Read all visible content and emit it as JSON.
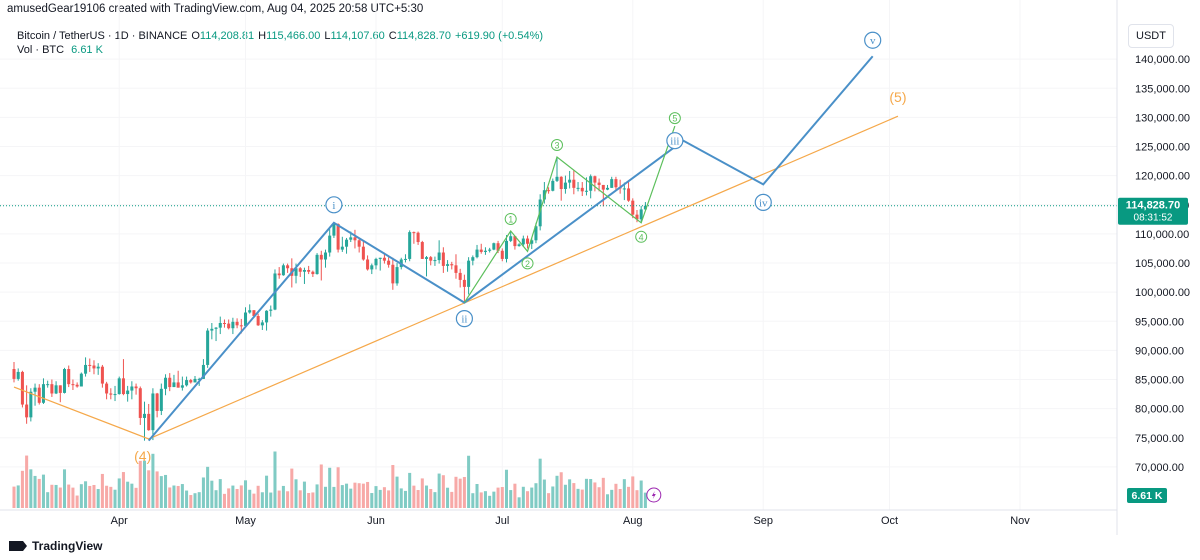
{
  "credit": "amusedGear19106 created with TradingView.com, Aug 04, 2025 20:58 UTC+5:30",
  "symbol_line": {
    "name": "Bitcoin / TetherUS · 1D · BINANCE",
    "o_label": "O",
    "o_value": "114,208.81",
    "h_label": "H",
    "h_value": "115,466.00",
    "l_label": "L",
    "l_value": "114,107.60",
    "c_label": "C",
    "c_value": "114,828.70",
    "change": "+619.90 (+0.54%)"
  },
  "vol_line": {
    "label": "Vol · BTC",
    "value": "6.61 K"
  },
  "currency": "USDT",
  "brand": "TradingView",
  "price_tag": {
    "price": "114,828.70",
    "countdown": "08:31:52"
  },
  "volume_tag": "6.61 K",
  "colors": {
    "up": "#26a69a",
    "down": "#ef5350",
    "vol_up": "#80cbc4",
    "vol_down": "#f7a9a7",
    "wave_main": "#4a90c8",
    "wave_sub": "#5cbf5c",
    "trendline": "#f5a84a",
    "price_line": "#089981"
  },
  "chart_data": {
    "type": "candlestick",
    "y_axis": {
      "min": 65000,
      "max": 145000,
      "ticks": [
        70000,
        75000,
        80000,
        85000,
        90000,
        95000,
        100000,
        105000,
        110000,
        115000,
        120000,
        125000,
        130000,
        135000,
        140000
      ],
      "tick_labels": [
        "70,000.00",
        "75,000.00",
        "80,000.00",
        "85,000.00",
        "90,000.00",
        "95,000.00",
        "100,000.00",
        "105,000.00",
        "110,000.00",
        "115,000.00",
        "120,000.00",
        "125,000.00",
        "130,000.00",
        "135,000.00",
        "140,000.00"
      ]
    },
    "x_axis": {
      "start": "2025-03-07",
      "end": "2025-11-20",
      "tick_labels": [
        "Apr",
        "May",
        "Jun",
        "Jul",
        "Aug",
        "Sep",
        "Oct",
        "Nov"
      ],
      "tick_dates": [
        "2025-04-01",
        "2025-05-01",
        "2025-06-01",
        "2025-07-01",
        "2025-08-01",
        "2025-09-01",
        "2025-10-01",
        "2025-11-01"
      ]
    },
    "candles": [
      [
        "2025-03-07",
        86800,
        88000,
        84500,
        85100
      ],
      [
        "2025-03-08",
        85100,
        86900,
        84800,
        86300
      ],
      [
        "2025-03-09",
        86300,
        86500,
        80200,
        80700
      ],
      [
        "2025-03-10",
        80700,
        84000,
        77400,
        78500
      ],
      [
        "2025-03-11",
        78500,
        83500,
        77800,
        82900
      ],
      [
        "2025-03-12",
        82900,
        84300,
        80500,
        83600
      ],
      [
        "2025-03-13",
        83600,
        84200,
        80700,
        81000
      ],
      [
        "2025-03-14",
        81000,
        85200,
        80800,
        84200
      ],
      [
        "2025-03-15",
        84200,
        84800,
        83600,
        84200
      ],
      [
        "2025-03-16",
        84200,
        85000,
        82000,
        82600
      ],
      [
        "2025-03-17",
        82600,
        84700,
        82500,
        84000
      ],
      [
        "2025-03-18",
        84000,
        84000,
        81100,
        82700
      ],
      [
        "2025-03-19",
        82700,
        87000,
        82600,
        86800
      ],
      [
        "2025-03-20",
        86800,
        87400,
        83700,
        84200
      ],
      [
        "2025-03-21",
        84200,
        85000,
        83200,
        84100
      ],
      [
        "2025-03-22",
        84100,
        84500,
        83600,
        83800
      ],
      [
        "2025-03-23",
        83800,
        86200,
        83800,
        86000
      ],
      [
        "2025-03-24",
        86000,
        88800,
        85500,
        87500
      ],
      [
        "2025-03-25",
        87500,
        88600,
        86300,
        87400
      ],
      [
        "2025-03-26",
        87400,
        88300,
        85900,
        86900
      ],
      [
        "2025-03-27",
        86900,
        87800,
        85800,
        87200
      ],
      [
        "2025-03-28",
        87200,
        87500,
        83600,
        84300
      ],
      [
        "2025-03-29",
        84300,
        84600,
        81600,
        82600
      ],
      [
        "2025-03-30",
        82600,
        83500,
        81600,
        82400
      ],
      [
        "2025-03-31",
        82400,
        83900,
        81300,
        82500
      ],
      [
        "2025-04-01",
        82500,
        85500,
        82400,
        85200
      ],
      [
        "2025-04-02",
        85200,
        88500,
        82300,
        82500
      ],
      [
        "2025-04-03",
        82500,
        83900,
        81200,
        83100
      ],
      [
        "2025-04-04",
        83100,
        84700,
        81600,
        83800
      ],
      [
        "2025-04-05",
        83800,
        84300,
        82400,
        83500
      ],
      [
        "2025-04-06",
        83500,
        83800,
        77200,
        78400
      ],
      [
        "2025-04-07",
        78400,
        81200,
        74500,
        79100
      ],
      [
        "2025-04-08",
        79100,
        80800,
        76200,
        76300
      ],
      [
        "2025-04-09",
        76300,
        83500,
        74600,
        82600
      ],
      [
        "2025-04-10",
        82600,
        82700,
        78500,
        79600
      ],
      [
        "2025-04-11",
        79600,
        84300,
        78900,
        83400
      ],
      [
        "2025-04-12",
        83400,
        85900,
        82300,
        85300
      ],
      [
        "2025-04-13",
        85300,
        86100,
        83000,
        83700
      ],
      [
        "2025-04-14",
        83700,
        85800,
        83700,
        84500
      ],
      [
        "2025-04-15",
        84500,
        86500,
        83600,
        83600
      ],
      [
        "2025-04-16",
        83600,
        85500,
        83100,
        84000
      ],
      [
        "2025-04-17",
        84000,
        85500,
        83800,
        84900
      ],
      [
        "2025-04-18",
        84900,
        85100,
        84300,
        84500
      ],
      [
        "2025-04-19",
        84500,
        85600,
        84500,
        85100
      ],
      [
        "2025-04-20",
        85100,
        85300,
        83900,
        85100
      ],
      [
        "2025-04-21",
        85100,
        88500,
        85100,
        87500
      ],
      [
        "2025-04-22",
        87500,
        93800,
        87000,
        93400
      ],
      [
        "2025-04-23",
        93400,
        94700,
        91900,
        93700
      ],
      [
        "2025-04-24",
        93700,
        94000,
        91600,
        93900
      ],
      [
        "2025-04-25",
        93900,
        95800,
        92800,
        94700
      ],
      [
        "2025-04-26",
        94700,
        95300,
        93900,
        94600
      ],
      [
        "2025-04-27",
        94600,
        95300,
        93600,
        93800
      ],
      [
        "2025-04-28",
        93800,
        95600,
        92800,
        94900
      ],
      [
        "2025-04-29",
        94900,
        95500,
        93800,
        94300
      ],
      [
        "2025-04-30",
        94300,
        95400,
        92900,
        94200
      ],
      [
        "2025-05-01",
        94200,
        97400,
        94100,
        96500
      ],
      [
        "2025-05-02",
        96500,
        97900,
        96300,
        96900
      ],
      [
        "2025-05-03",
        96900,
        96900,
        95700,
        95900
      ],
      [
        "2025-05-04",
        95900,
        96300,
        94200,
        94300
      ],
      [
        "2025-05-05",
        94300,
        95200,
        93500,
        94800
      ],
      [
        "2025-05-06",
        94800,
        96900,
        93400,
        96800
      ],
      [
        "2025-05-07",
        96800,
        97700,
        95800,
        97000
      ],
      [
        "2025-05-08",
        97000,
        103900,
        96900,
        103200
      ],
      [
        "2025-05-09",
        103200,
        104300,
        102300,
        102900
      ],
      [
        "2025-05-10",
        102900,
        104900,
        102800,
        104600
      ],
      [
        "2025-05-11",
        104600,
        104900,
        103300,
        104100
      ],
      [
        "2025-05-12",
        104100,
        105800,
        100800,
        102800
      ],
      [
        "2025-05-13",
        102800,
        104900,
        101500,
        104100
      ],
      [
        "2025-05-14",
        104100,
        104300,
        102600,
        103500
      ],
      [
        "2025-05-15",
        103500,
        104200,
        101400,
        103800
      ],
      [
        "2025-05-16",
        103800,
        104500,
        103100,
        103500
      ],
      [
        "2025-05-17",
        103500,
        103700,
        102600,
        103100
      ],
      [
        "2025-05-18",
        103100,
        106700,
        103000,
        106400
      ],
      [
        "2025-05-19",
        106400,
        107100,
        102000,
        105600
      ],
      [
        "2025-05-20",
        105600,
        107300,
        104200,
        106800
      ],
      [
        "2025-05-21",
        106800,
        110800,
        106100,
        109700
      ],
      [
        "2025-05-22",
        109700,
        111900,
        109300,
        111700
      ],
      [
        "2025-05-23",
        111700,
        111800,
        106800,
        107300
      ],
      [
        "2025-05-24",
        107300,
        109500,
        106900,
        107800
      ],
      [
        "2025-05-25",
        107800,
        109300,
        106600,
        109000
      ],
      [
        "2025-05-26",
        109000,
        110400,
        108600,
        109400
      ],
      [
        "2025-05-27",
        109400,
        110700,
        107500,
        108900
      ],
      [
        "2025-05-28",
        108900,
        109300,
        106800,
        107800
      ],
      [
        "2025-05-29",
        107800,
        108900,
        105400,
        105600
      ],
      [
        "2025-05-30",
        105600,
        106300,
        103700,
        103900
      ],
      [
        "2025-05-31",
        103900,
        104900,
        103100,
        104600
      ],
      [
        "2025-06-01",
        104600,
        105900,
        103900,
        105700
      ],
      [
        "2025-06-02",
        105700,
        105900,
        103700,
        105900
      ],
      [
        "2025-06-03",
        105900,
        106800,
        104900,
        105400
      ],
      [
        "2025-06-04",
        105400,
        106000,
        104200,
        104700
      ],
      [
        "2025-06-05",
        104700,
        105900,
        100400,
        101500
      ],
      [
        "2025-06-06",
        101500,
        105000,
        101100,
        104300
      ],
      [
        "2025-06-07",
        104300,
        105900,
        103900,
        105600
      ],
      [
        "2025-06-08",
        105600,
        106500,
        105100,
        105700
      ],
      [
        "2025-06-09",
        105700,
        110600,
        105300,
        110300
      ],
      [
        "2025-06-10",
        110300,
        110400,
        108300,
        110200
      ],
      [
        "2025-06-11",
        110200,
        110400,
        108100,
        108600
      ],
      [
        "2025-06-12",
        108600,
        108800,
        105700,
        105700
      ],
      [
        "2025-06-13",
        105700,
        106200,
        102700,
        106000
      ],
      [
        "2025-06-14",
        106000,
        106200,
        104600,
        105400
      ],
      [
        "2025-06-15",
        105400,
        106100,
        104500,
        105500
      ],
      [
        "2025-06-16",
        105500,
        108900,
        104900,
        106800
      ],
      [
        "2025-06-17",
        106800,
        107700,
        103300,
        104500
      ],
      [
        "2025-06-18",
        104500,
        105500,
        103500,
        104800
      ],
      [
        "2025-06-19",
        104800,
        105200,
        103900,
        104600
      ],
      [
        "2025-06-20",
        104600,
        106500,
        102300,
        103300
      ],
      [
        "2025-06-21",
        103300,
        104000,
        100800,
        102100
      ],
      [
        "2025-06-22",
        102100,
        103000,
        98200,
        100900
      ],
      [
        "2025-06-23",
        100900,
        106000,
        99600,
        105400
      ],
      [
        "2025-06-24",
        105400,
        106300,
        104600,
        106000
      ],
      [
        "2025-06-25",
        106000,
        108100,
        105800,
        107300
      ],
      [
        "2025-06-26",
        107300,
        108300,
        106600,
        106900
      ],
      [
        "2025-06-27",
        106900,
        107700,
        106400,
        107100
      ],
      [
        "2025-06-28",
        107100,
        107600,
        106800,
        107300
      ],
      [
        "2025-06-29",
        107300,
        108500,
        107200,
        108400
      ],
      [
        "2025-06-30",
        108400,
        108800,
        106700,
        107100
      ],
      [
        "2025-07-01",
        107100,
        107500,
        105300,
        105700
      ],
      [
        "2025-07-02",
        105700,
        109800,
        105100,
        108800
      ],
      [
        "2025-07-03",
        108800,
        110500,
        108600,
        109600
      ],
      [
        "2025-07-04",
        109600,
        109700,
        107300,
        107900
      ],
      [
        "2025-07-05",
        107900,
        108400,
        107800,
        108200
      ],
      [
        "2025-07-06",
        108200,
        109700,
        107800,
        109200
      ],
      [
        "2025-07-07",
        109200,
        109700,
        107500,
        108300
      ],
      [
        "2025-07-08",
        108300,
        109200,
        107400,
        108900
      ],
      [
        "2025-07-09",
        108900,
        111900,
        108400,
        111300
      ],
      [
        "2025-07-10",
        111300,
        116800,
        110600,
        115900
      ],
      [
        "2025-07-11",
        115900,
        118900,
        115200,
        117500
      ],
      [
        "2025-07-12",
        117500,
        118000,
        116900,
        117400
      ],
      [
        "2025-07-13",
        117400,
        119500,
        117300,
        119100
      ],
      [
        "2025-07-14",
        119100,
        123200,
        118900,
        119800
      ],
      [
        "2025-07-15",
        119800,
        119900,
        115700,
        117700
      ],
      [
        "2025-07-16",
        117700,
        120000,
        116900,
        118800
      ],
      [
        "2025-07-17",
        118800,
        120800,
        117800,
        119300
      ],
      [
        "2025-07-18",
        119300,
        120900,
        116800,
        117900
      ],
      [
        "2025-07-19",
        117900,
        118900,
        117300,
        117900
      ],
      [
        "2025-07-20",
        117900,
        118900,
        116500,
        117300
      ],
      [
        "2025-07-21",
        117300,
        119700,
        116600,
        117400
      ],
      [
        "2025-07-22",
        117400,
        120200,
        116100,
        119900
      ],
      [
        "2025-07-23",
        119900,
        120000,
        117300,
        118800
      ],
      [
        "2025-07-24",
        118800,
        119500,
        117300,
        118400
      ],
      [
        "2025-07-25",
        118400,
        118400,
        114700,
        117600
      ],
      [
        "2025-07-26",
        117600,
        118400,
        117500,
        117900
      ],
      [
        "2025-07-27",
        117900,
        119800,
        117900,
        119400
      ],
      [
        "2025-07-28",
        119400,
        119800,
        117400,
        118000
      ],
      [
        "2025-07-29",
        118000,
        119300,
        116900,
        117800
      ],
      [
        "2025-07-30",
        117800,
        118800,
        115800,
        117800
      ],
      [
        "2025-07-31",
        117800,
        118900,
        115500,
        115700
      ],
      [
        "2025-08-01",
        115700,
        116100,
        112700,
        113300
      ],
      [
        "2025-08-02",
        113300,
        114100,
        112000,
        112500
      ],
      [
        "2025-08-03",
        112500,
        114800,
        111900,
        114200
      ],
      [
        "2025-08-04",
        114200,
        115466,
        114107.6,
        114828.7
      ]
    ],
    "volume": {
      "unit": "BTC",
      "last": 6.61
    },
    "annotations": {
      "wave_main": {
        "points": [
          [
            "2025-04-08",
            74500
          ],
          [
            "2025-05-22",
            111900
          ],
          [
            "2025-06-22",
            98200
          ],
          [
            "2025-08-13",
            126000
          ],
          [
            "2025-09-01",
            118500
          ],
          [
            "2025-09-27",
            140500
          ]
        ],
        "labels": [
          [
            "2025-05-22",
            "i"
          ],
          [
            "2025-06-22",
            "ii"
          ],
          [
            "2025-08-11",
            "iii"
          ],
          [
            "2025-09-01",
            "iv"
          ],
          [
            "2025-09-27",
            "v"
          ]
        ]
      },
      "wave_sub": {
        "points": [
          [
            "2025-06-22",
            98200
          ],
          [
            "2025-07-03",
            110500
          ],
          [
            "2025-07-07",
            107000
          ],
          [
            "2025-07-14",
            123200
          ],
          [
            "2025-08-03",
            111900
          ],
          [
            "2025-08-11",
            128500
          ]
        ],
        "labels": [
          [
            "2025-07-03",
            "1"
          ],
          [
            "2025-07-07",
            "2"
          ],
          [
            "2025-07-14",
            "3"
          ],
          [
            "2025-08-03",
            "4"
          ],
          [
            "2025-08-11",
            "5"
          ]
        ]
      },
      "trendline": {
        "points": [
          [
            "2025-03-07",
            83700
          ],
          [
            "2025-04-08",
            74800
          ],
          [
            "2025-10-03",
            130200
          ]
        ],
        "labels": [
          [
            "2025-04-08",
            "(4)"
          ],
          [
            "2025-10-03",
            "(5)"
          ]
        ]
      }
    }
  }
}
